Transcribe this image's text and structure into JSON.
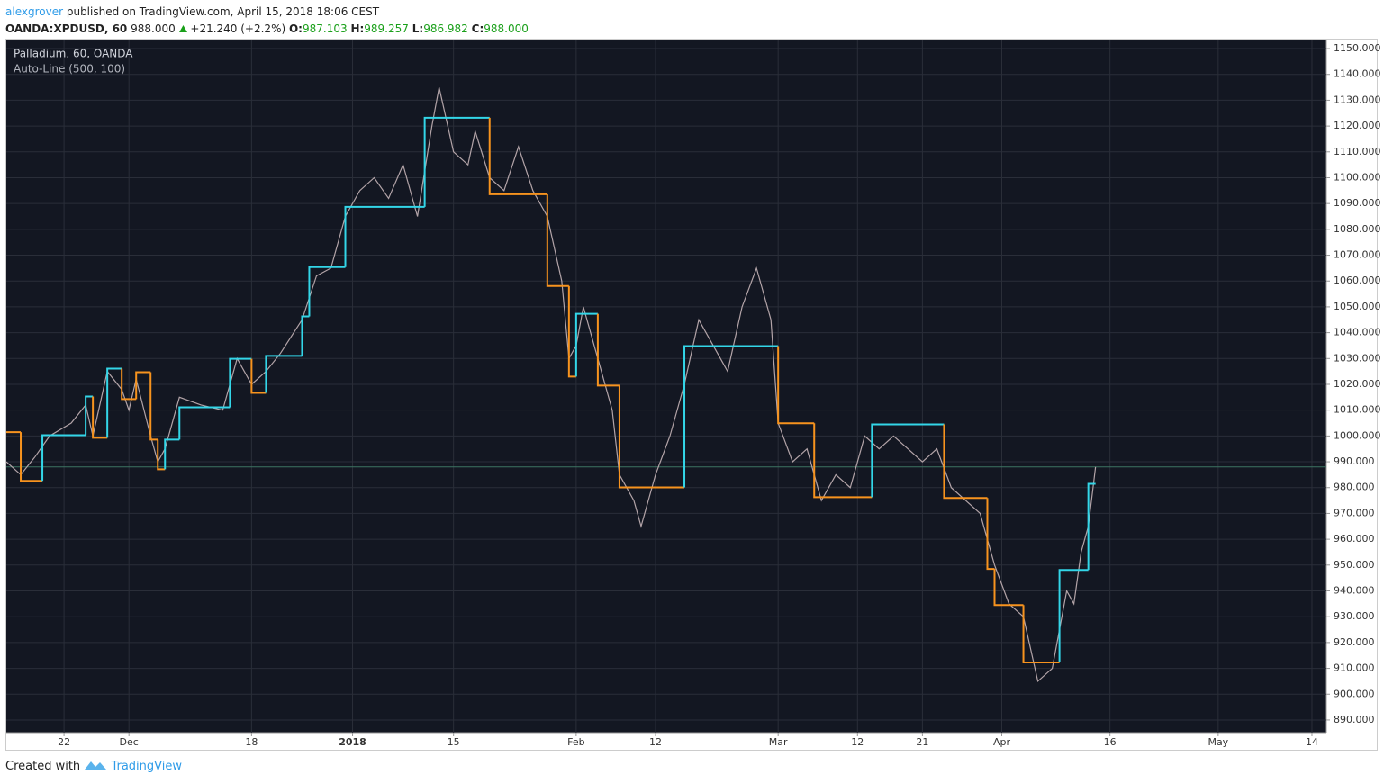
{
  "header": {
    "author": "alexgrover",
    "published": "published on TradingView.com, April 15, 2018 18:06 CEST",
    "symbol": "OANDA:XPDUSD, 60",
    "last": "988.000",
    "change": "+21.240 (+2.2%)",
    "ohlc_keys": [
      "O:",
      "H:",
      "L:",
      "C:"
    ],
    "ohlc_values": [
      "987.103",
      "989.257",
      "986.982",
      "988.000"
    ]
  },
  "footer": {
    "text": "Created with",
    "brand": "TradingView"
  },
  "chart_data": {
    "type": "line",
    "title": "Palladium, 60, OANDA",
    "subtitle": "Auto-Line (500, 100)",
    "xlim": [
      "2017-11-14",
      "2018-05-16"
    ],
    "xticks": [
      {
        "value": "2017-11-22",
        "label": "22"
      },
      {
        "value": "2017-12-01",
        "label": "Dec"
      },
      {
        "value": "2017-12-18",
        "label": "18"
      },
      {
        "value": "2018-01-01",
        "label": "2018"
      },
      {
        "value": "2018-01-15",
        "label": "15"
      },
      {
        "value": "2018-02-01",
        "label": "Feb"
      },
      {
        "value": "2018-02-12",
        "label": "12"
      },
      {
        "value": "2018-03-01",
        "label": "Mar"
      },
      {
        "value": "2018-03-12",
        "label": "12"
      },
      {
        "value": "2018-03-21",
        "label": "21"
      },
      {
        "value": "2018-04-01",
        "label": "Apr"
      },
      {
        "value": "2018-04-16",
        "label": "16"
      },
      {
        "value": "2018-05-01",
        "label": "May"
      },
      {
        "value": "2018-05-14",
        "label": "14"
      }
    ],
    "ylim": [
      885.1,
      1153.5
    ],
    "yticks": [
      {
        "value": 890,
        "label": "890.000"
      },
      {
        "value": 900,
        "label": "900.000"
      },
      {
        "value": 910,
        "label": "910.000"
      },
      {
        "value": 920,
        "label": "920.000"
      },
      {
        "value": 930,
        "label": "930.000"
      },
      {
        "value": 940,
        "label": "940.000"
      },
      {
        "value": 950,
        "label": "950.000"
      },
      {
        "value": 960,
        "label": "960.000"
      },
      {
        "value": 970,
        "label": "970.000"
      },
      {
        "value": 980,
        "label": "980.000"
      },
      {
        "value": 990,
        "label": "990.000"
      },
      {
        "value": 1000,
        "label": "1000.000"
      },
      {
        "value": 1010,
        "label": "1010.000"
      },
      {
        "value": 1020,
        "label": "1020.000"
      },
      {
        "value": 1030,
        "label": "1030.000"
      },
      {
        "value": 1040,
        "label": "1040.000"
      },
      {
        "value": 1050,
        "label": "1050.000"
      },
      {
        "value": 1060,
        "label": "1060.000"
      },
      {
        "value": 1070,
        "label": "1070.000"
      },
      {
        "value": 1080,
        "label": "1080.000"
      },
      {
        "value": 1090,
        "label": "1090.000"
      },
      {
        "value": 1100,
        "label": "1100.000"
      },
      {
        "value": 1110,
        "label": "1110.000"
      },
      {
        "value": 1120,
        "label": "1120.000"
      },
      {
        "value": 1130,
        "label": "1130.000"
      },
      {
        "value": 1140,
        "label": "1140.000"
      },
      {
        "value": 1150,
        "label": "1150.000"
      }
    ],
    "grid": true,
    "price": {
      "color": "#b3a4a8",
      "x": [
        "2017-11-14",
        "2017-11-16",
        "2017-11-18",
        "2017-11-20",
        "2017-11-23",
        "2017-11-25",
        "2017-11-26",
        "2017-11-28",
        "2017-11-30",
        "2017-12-01",
        "2017-12-02",
        "2017-12-04",
        "2017-12-05",
        "2017-12-06",
        "2017-12-08",
        "2017-12-11",
        "2017-12-14",
        "2017-12-16",
        "2017-12-18",
        "2017-12-20",
        "2017-12-22",
        "2017-12-25",
        "2017-12-27",
        "2017-12-29",
        "2017-12-31",
        "2018-01-02",
        "2018-01-04",
        "2018-01-06",
        "2018-01-08",
        "2018-01-10",
        "2018-01-12",
        "2018-01-13",
        "2018-01-15",
        "2018-01-17",
        "2018-01-18",
        "2018-01-20",
        "2018-01-22",
        "2018-01-24",
        "2018-01-26",
        "2018-01-28",
        "2018-01-30",
        "2018-01-31",
        "2018-02-01",
        "2018-02-02",
        "2018-02-04",
        "2018-02-06",
        "2018-02-07",
        "2018-02-09",
        "2018-02-10",
        "2018-02-12",
        "2018-02-14",
        "2018-02-16",
        "2018-02-18",
        "2018-02-20",
        "2018-02-22",
        "2018-02-24",
        "2018-02-26",
        "2018-02-28",
        "2018-03-01",
        "2018-03-03",
        "2018-03-05",
        "2018-03-07",
        "2018-03-09",
        "2018-03-11",
        "2018-03-13",
        "2018-03-15",
        "2018-03-17",
        "2018-03-19",
        "2018-03-21",
        "2018-03-23",
        "2018-03-25",
        "2018-03-27",
        "2018-03-29",
        "2018-03-31",
        "2018-04-02",
        "2018-04-04",
        "2018-04-06",
        "2018-04-08",
        "2018-04-10",
        "2018-04-11",
        "2018-04-12",
        "2018-04-13",
        "2018-04-14"
      ],
      "values": [
        990,
        985,
        992,
        1000,
        1005,
        1012,
        1000,
        1025,
        1018,
        1010,
        1022,
        1000,
        990,
        995,
        1015,
        1012,
        1010,
        1030,
        1020,
        1025,
        1032,
        1045,
        1062,
        1065,
        1085,
        1095,
        1100,
        1092,
        1105,
        1085,
        1120,
        1135,
        1110,
        1105,
        1118,
        1100,
        1095,
        1112,
        1095,
        1085,
        1060,
        1030,
        1035,
        1050,
        1030,
        1010,
        985,
        975,
        965,
        985,
        1000,
        1020,
        1045,
        1035,
        1025,
        1050,
        1065,
        1045,
        1005,
        990,
        995,
        975,
        985,
        980,
        1000,
        995,
        1000,
        995,
        990,
        995,
        980,
        975,
        970,
        950,
        935,
        930,
        905,
        910,
        940,
        935,
        955,
        965,
        988
      ]
    },
    "auto_line": {
      "x": [
        "2017-11-14",
        "2017-11-16",
        "2017-11-19",
        "2017-11-25",
        "2017-11-26",
        "2017-11-28",
        "2017-11-30",
        "2017-12-02",
        "2017-12-04",
        "2017-12-05",
        "2017-12-06",
        "2017-12-08",
        "2017-12-15",
        "2017-12-18",
        "2017-12-20",
        "2017-12-25",
        "2017-12-26",
        "2017-12-31",
        "2018-01-11",
        "2018-01-20",
        "2018-01-28",
        "2018-01-31",
        "2018-02-01",
        "2018-02-04",
        "2018-02-07",
        "2018-02-16",
        "2018-03-01",
        "2018-03-06",
        "2018-03-14",
        "2018-03-24",
        "2018-03-30",
        "2018-03-31",
        "2018-04-04",
        "2018-04-09",
        "2018-04-13"
      ],
      "x_end": "2018-04-14",
      "values": [
        1001.5,
        982.6,
        1000.3,
        1015.3,
        999.3,
        1026.1,
        1014.3,
        1024.7,
        998.6,
        987.1,
        998.6,
        1011.1,
        1029.9,
        1016.7,
        1031.0,
        1046.3,
        1065.4,
        1088.7,
        1123.2,
        1093.6,
        1058.1,
        1023.0,
        1047.3,
        1019.5,
        980.1,
        1034.8,
        1004.9,
        976.3,
        1004.5,
        976.0,
        948.5,
        934.5,
        912.3,
        948.1,
        981.5
      ],
      "colors": [
        "#f7931e",
        "#f7931e",
        "#33d6e8",
        "#33d6e8",
        "#f7931e",
        "#33d6e8",
        "#f7931e",
        "#f7931e",
        "#f7931e",
        "#f7931e",
        "#33d6e8",
        "#33d6e8",
        "#33d6e8",
        "#f7931e",
        "#33d6e8",
        "#33d6e8",
        "#33d6e8",
        "#33d6e8",
        "#33d6e8",
        "#f7931e",
        "#f7931e",
        "#f7931e",
        "#33d6e8",
        "#f7931e",
        "#f7931e",
        "#33d6e8",
        "#f7931e",
        "#f7931e",
        "#33d6e8",
        "#f7931e",
        "#f7931e",
        "#f7931e",
        "#f7931e",
        "#33d6e8",
        "#33d6e8"
      ]
    },
    "price_line": {
      "value": 988,
      "color": "#3d7563"
    }
  }
}
